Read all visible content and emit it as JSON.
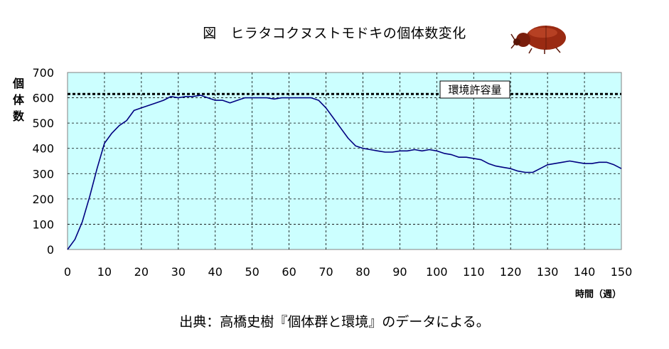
{
  "title": "図　ヒラタコクヌストモドキの個体数変化",
  "source": "出典：高橋史樹『個体群と環境』のデータによる。",
  "icon": "beetle-icon",
  "chart_data": {
    "type": "line",
    "xlabel": "時間（週）",
    "ylabel": "個体数",
    "xlim": [
      0,
      150
    ],
    "ylim": [
      0,
      700
    ],
    "x_ticks": [
      0,
      10,
      20,
      30,
      40,
      50,
      60,
      70,
      80,
      90,
      100,
      110,
      120,
      130,
      140,
      150
    ],
    "y_ticks": [
      0,
      100,
      200,
      300,
      400,
      500,
      600,
      700
    ],
    "grid": true,
    "plot_background": "#ccffff",
    "series": [
      {
        "color": "#000080",
        "x": [
          0,
          2,
          4,
          6,
          8,
          10,
          12,
          14,
          16,
          18,
          20,
          22,
          24,
          26,
          28,
          30,
          32,
          34,
          36,
          38,
          40,
          42,
          44,
          46,
          48,
          50,
          52,
          54,
          56,
          58,
          60,
          62,
          64,
          66,
          68,
          70,
          72,
          74,
          76,
          78,
          80,
          82,
          84,
          86,
          88,
          90,
          92,
          94,
          96,
          98,
          100,
          102,
          104,
          106,
          108,
          110,
          112,
          114,
          116,
          118,
          120,
          122,
          124,
          126,
          128,
          130,
          132,
          134,
          136,
          138,
          140,
          142,
          144,
          146,
          148,
          150
        ],
        "y": [
          0,
          40,
          110,
          210,
          320,
          420,
          460,
          490,
          510,
          550,
          560,
          570,
          580,
          590,
          605,
          600,
          605,
          605,
          610,
          600,
          590,
          590,
          580,
          590,
          600,
          600,
          600,
          600,
          595,
          600,
          600,
          600,
          600,
          600,
          590,
          560,
          520,
          480,
          440,
          410,
          400,
          395,
          390,
          385,
          385,
          390,
          390,
          395,
          390,
          395,
          390,
          380,
          375,
          365,
          365,
          360,
          355,
          340,
          330,
          325,
          320,
          310,
          305,
          305,
          320,
          335,
          340,
          345,
          350,
          345,
          340,
          340,
          345,
          345,
          335,
          320
        ]
      }
    ],
    "reference_line": {
      "label": "環境許容量",
      "y": 615,
      "style": "dotted"
    }
  }
}
